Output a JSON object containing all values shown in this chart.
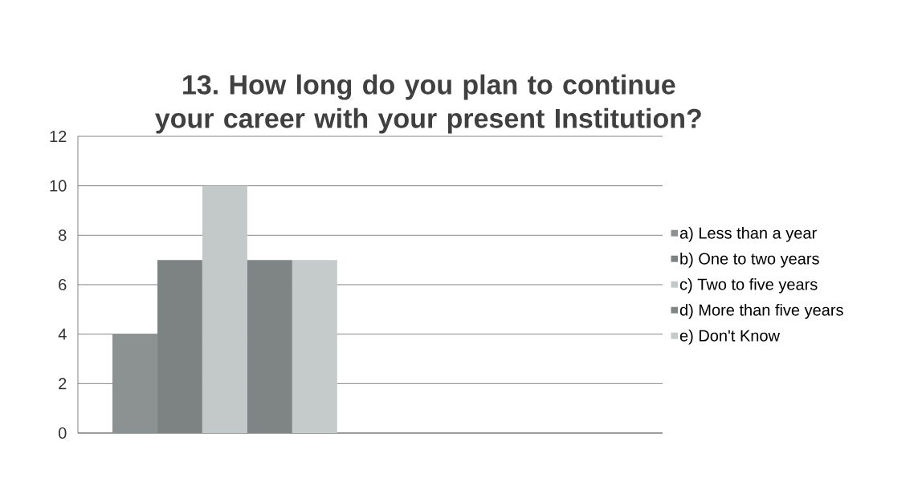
{
  "chart_data": {
    "type": "bar",
    "title": "13. How long do you plan to continue your career with your present Institution?",
    "categories": [
      null
    ],
    "series": [
      {
        "name": "a) Less than a year",
        "color": "#8c9191",
        "values": [
          4
        ]
      },
      {
        "name": "b) One to two years",
        "color": "#7d8383",
        "values": [
          7
        ]
      },
      {
        "name": "c) Two to five years",
        "color": "#c3c8c9",
        "values": [
          10
        ]
      },
      {
        "name": "d) More than five years",
        "color": "#7f8585",
        "values": [
          7
        ]
      },
      {
        "name": "e) Don't Know",
        "color": "#c5cacb",
        "values": [
          7
        ]
      }
    ],
    "ylim": [
      0,
      12
    ],
    "yticks": [
      0,
      2,
      4,
      6,
      8,
      10,
      12
    ],
    "grid": "y",
    "legend": "right",
    "tick_labels": "y"
  }
}
